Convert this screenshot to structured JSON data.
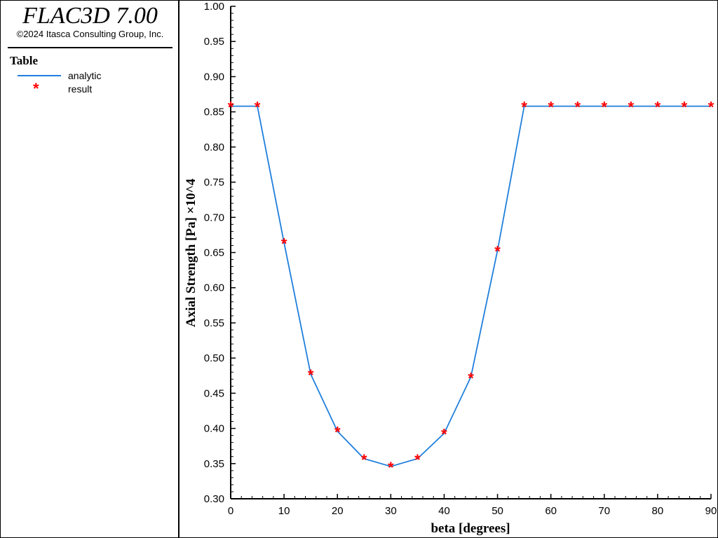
{
  "app": {
    "title": "FLAC3D 7.00",
    "copyright": "©2024 Itasca Consulting Group, Inc."
  },
  "legend": {
    "title": "Table",
    "items": [
      {
        "label": "analytic",
        "marker": "line",
        "color": "#1f7fdc"
      },
      {
        "label": "result",
        "marker": "star-icon",
        "color": "#ff0000"
      }
    ]
  },
  "chart_data": {
    "type": "line",
    "xlabel": "beta [degrees]",
    "ylabel": "Axial Strength [Pa] ×10^4",
    "xlim": [
      0,
      90
    ],
    "ylim": [
      0.3,
      1.0
    ],
    "xticks": [
      0,
      10,
      20,
      30,
      40,
      50,
      60,
      70,
      80,
      90
    ],
    "yticks": [
      0.3,
      0.35,
      0.4,
      0.45,
      0.5,
      0.55,
      0.6,
      0.65,
      0.7,
      0.75,
      0.8,
      0.85,
      0.9,
      0.95,
      1.0
    ],
    "grid": false,
    "series": [
      {
        "name": "analytic",
        "style": "line",
        "color": "#1f7fdc",
        "x": [
          0,
          5,
          10,
          15,
          20,
          25,
          30,
          35,
          40,
          45,
          50,
          55,
          60,
          65,
          70,
          75,
          80,
          85,
          90
        ],
        "y": [
          0.858,
          0.858,
          0.664,
          0.477,
          0.396,
          0.357,
          0.346,
          0.357,
          0.393,
          0.473,
          0.653,
          0.858,
          0.858,
          0.858,
          0.858,
          0.858,
          0.858,
          0.858,
          0.858
        ]
      },
      {
        "name": "result",
        "style": "marker",
        "color": "#ff0000",
        "x": [
          0,
          5,
          10,
          15,
          20,
          25,
          30,
          35,
          40,
          45,
          50,
          55,
          60,
          65,
          70,
          75,
          80,
          85,
          90
        ],
        "y": [
          0.858,
          0.858,
          0.664,
          0.477,
          0.396,
          0.357,
          0.346,
          0.357,
          0.393,
          0.473,
          0.653,
          0.858,
          0.858,
          0.858,
          0.858,
          0.858,
          0.858,
          0.858,
          0.858
        ]
      }
    ]
  }
}
